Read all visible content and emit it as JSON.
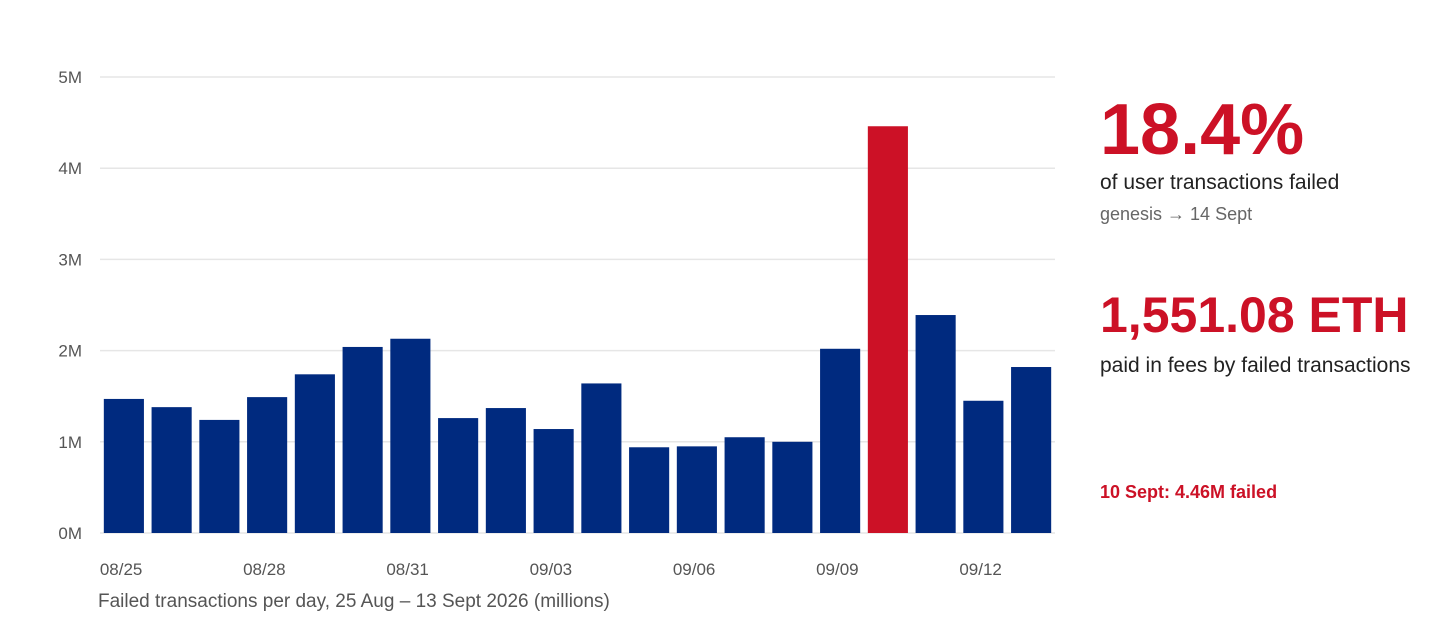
{
  "chart_data": {
    "type": "bar",
    "categories": [
      "08/25",
      "08/26",
      "08/27",
      "08/28",
      "08/29",
      "08/30",
      "08/31",
      "09/01",
      "09/02",
      "09/03",
      "09/04",
      "09/05",
      "09/06",
      "09/07",
      "09/08",
      "09/09",
      "09/10",
      "09/11",
      "09/12",
      "09/13"
    ],
    "values": [
      1.47,
      1.38,
      1.24,
      1.49,
      1.74,
      2.04,
      2.13,
      1.26,
      1.37,
      1.14,
      1.64,
      0.94,
      0.95,
      1.05,
      1.0,
      2.02,
      4.46,
      2.39,
      1.45,
      1.82
    ],
    "unit": "millions",
    "highlight_category": "09/10",
    "ylim": [
      0,
      5
    ],
    "yticks": [
      0,
      1,
      2,
      3,
      4,
      5
    ],
    "ytick_labels": [
      "0M",
      "1M",
      "2M",
      "3M",
      "4M",
      "5M"
    ],
    "xtick_labels": [
      "08/25",
      "08/28",
      "08/31",
      "09/03",
      "09/06",
      "09/09",
      "09/12"
    ],
    "grid": true,
    "caption": "Failed transactions per day, 25 Aug – 13 Sept 2026 (millions)"
  },
  "colors": {
    "bar": "#002a7f",
    "highlight": "#cc1126",
    "grid": "#e6e6e6"
  },
  "stats": {
    "failed_rate": "18.4%",
    "failed_rate_label": "of user transactions failed",
    "failed_rate_period": "genesis → 14 Sept",
    "fees": "1,551.08 ETH",
    "fees_label": "paid in fees by failed transactions",
    "callout": "10 Sept: 4.46M failed"
  }
}
